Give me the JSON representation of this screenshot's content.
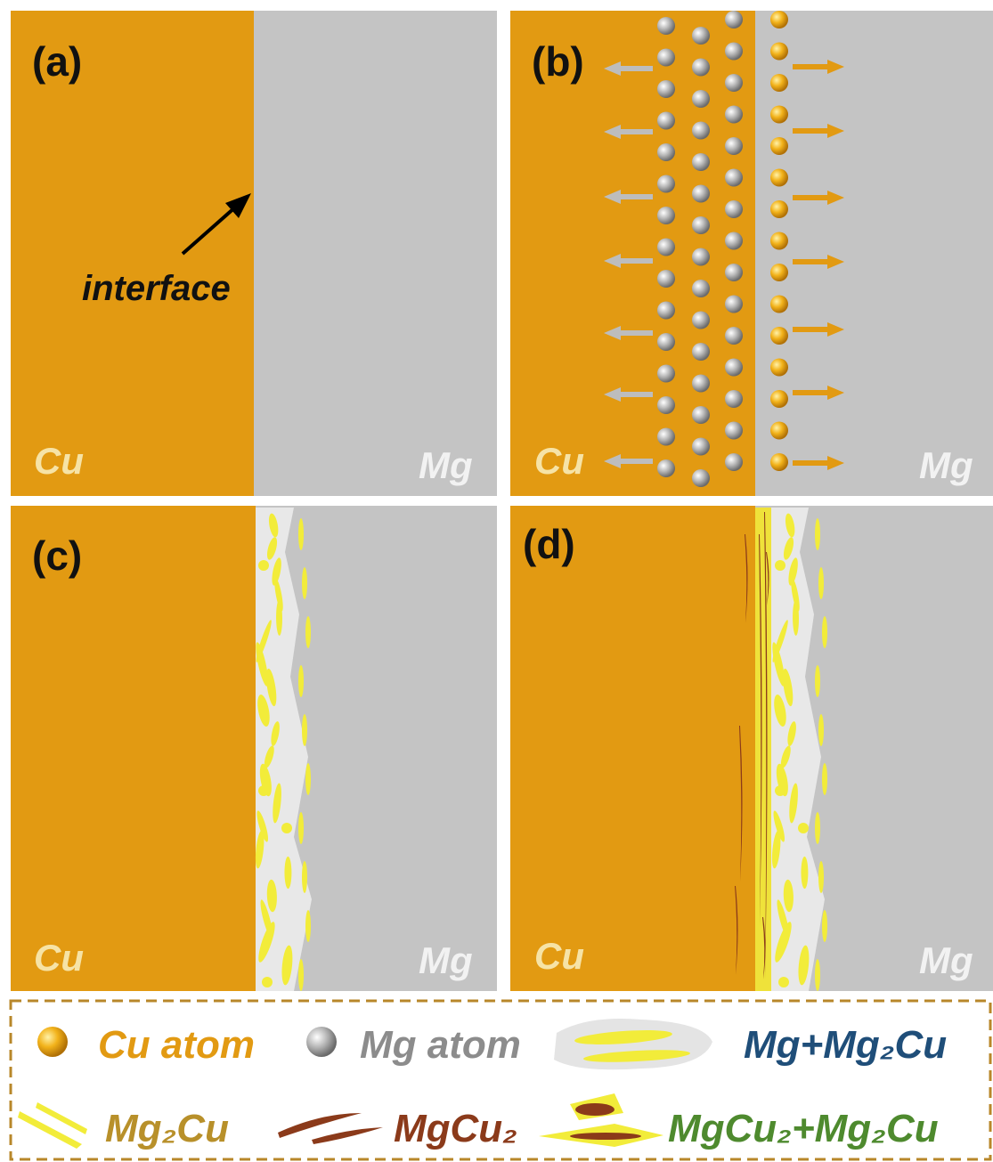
{
  "panels": [
    {
      "label": "(a)",
      "left": "Cu",
      "right": "Mg",
      "annotation": "interface"
    },
    {
      "label": "(b)",
      "left": "Cu",
      "right": "Mg"
    },
    {
      "label": "(c)",
      "left": "Cu",
      "right": "Mg"
    },
    {
      "label": "(d)",
      "left": "Cu",
      "right": "Mg"
    }
  ],
  "legend": {
    "items": [
      "Cu atom",
      "Mg atom",
      "Mg+Mg₂Cu",
      "Mg₂Cu",
      "MgCu₂",
      "MgCu₂+Mg₂Cu"
    ]
  }
}
